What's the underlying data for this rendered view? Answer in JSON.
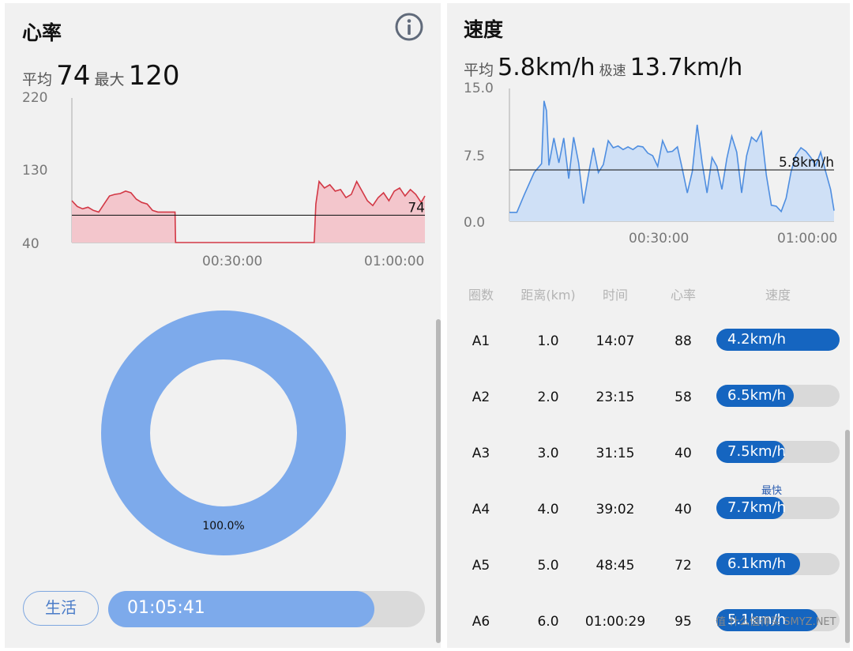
{
  "heart_rate": {
    "title": "心率",
    "avg_label": "平均",
    "avg_value": "74",
    "max_label": "最大",
    "max_value": "120",
    "info_icon": "info-icon",
    "chart_data": {
      "type": "area",
      "y_ticks": [
        "220",
        "130",
        "40"
      ],
      "x_ticks": [
        "00:30:00",
        "01:00:00"
      ],
      "ylim": [
        40,
        220
      ],
      "xlim_minutes": [
        0,
        65.7
      ],
      "average_line": 74,
      "average_label": "74",
      "color": "#d23845",
      "fill": "#f3c6cc",
      "x_minutes": [
        0,
        1,
        2,
        3,
        4,
        5,
        6,
        7,
        8,
        9,
        10,
        11,
        12,
        13,
        14,
        15,
        16,
        17,
        18,
        19,
        19.2,
        19.3,
        45,
        45.1,
        45.4,
        46,
        47,
        48,
        49,
        50,
        51,
        52,
        53,
        54,
        55,
        56,
        57,
        58,
        59,
        60,
        61,
        62,
        63,
        64,
        65,
        65.7
      ],
      "y": [
        92,
        85,
        82,
        84,
        80,
        78,
        88,
        98,
        100,
        101,
        104,
        102,
        94,
        90,
        88,
        80,
        78,
        78,
        78,
        78,
        78,
        40,
        40,
        40,
        88,
        116,
        108,
        112,
        104,
        106,
        96,
        100,
        116,
        104,
        92,
        86,
        96,
        102,
        92,
        104,
        108,
        98,
        106,
        100,
        90,
        98
      ]
    },
    "donut": {
      "percent_label": "100.0%",
      "percent": 100,
      "color": "#7daaeb"
    },
    "activity": {
      "label": "生活",
      "duration": "01:05:41",
      "progress": 0.84
    }
  },
  "speed": {
    "title": "速度",
    "avg_label": "平均",
    "avg_value": "5.8km/h",
    "max_label": "极速",
    "max_value": "13.7km/h",
    "chart_data": {
      "type": "area",
      "y_ticks": [
        "15.0",
        "7.5",
        "0.0"
      ],
      "x_ticks": [
        "00:30:00",
        "01:00:00"
      ],
      "ylim": [
        0,
        15
      ],
      "xlim_minutes": [
        0,
        65.7
      ],
      "average_line": 5.8,
      "average_label": "5.8km/h",
      "color": "#4f8ee0",
      "fill": "#cfe0f6",
      "x_minutes": [
        0,
        1.5,
        3,
        5,
        6.5,
        7,
        7.5,
        8,
        9,
        10,
        11,
        12,
        13,
        14,
        15,
        16,
        17,
        18,
        19,
        20,
        21,
        22,
        23,
        24,
        25,
        26,
        27,
        28,
        29,
        30,
        31,
        32,
        33,
        34,
        35,
        36,
        37,
        38,
        39,
        40,
        41,
        42,
        43,
        44,
        45,
        46,
        47,
        48,
        49,
        50,
        51,
        52,
        53,
        54,
        55,
        56,
        57,
        58,
        59,
        60,
        61,
        62,
        63,
        64,
        65,
        65.7
      ],
      "y": [
        1,
        1,
        3,
        5.5,
        6.5,
        13.6,
        12.5,
        6.3,
        9.4,
        6.6,
        9.4,
        4.8,
        9.5,
        6.6,
        2,
        5.3,
        8.3,
        5.5,
        6.4,
        9.1,
        8.3,
        8.5,
        8.1,
        8.4,
        8.1,
        8.5,
        8.4,
        7.7,
        7.4,
        6.2,
        9.1,
        7.8,
        7.9,
        8.4,
        5.9,
        3.2,
        5.6,
        10.9,
        6.6,
        3.2,
        7.2,
        6.2,
        3.6,
        7.1,
        9.6,
        7.8,
        3.2,
        7.4,
        9.5,
        9.0,
        10.1,
        5.2,
        1.8,
        1.7,
        1.1,
        2.6,
        5.6,
        7.5,
        8.3,
        7.9,
        7.2,
        6.3,
        7.8,
        5.6,
        3.6,
        1.2
      ]
    },
    "table": {
      "headers": [
        "圈数",
        "距离(km)",
        "时间",
        "心率",
        "速度"
      ],
      "fastest_label": "最快",
      "rows": [
        {
          "lap": "A1",
          "distance": "1.0",
          "time": "14:07",
          "hr": "88",
          "speed": "4.2km/h",
          "ratio": 1.0
        },
        {
          "lap": "A2",
          "distance": "2.0",
          "time": "23:15",
          "hr": "58",
          "speed": "6.5km/h",
          "ratio": 0.63
        },
        {
          "lap": "A3",
          "distance": "3.0",
          "time": "31:15",
          "hr": "40",
          "speed": "7.5km/h",
          "ratio": 0.56
        },
        {
          "lap": "A4",
          "distance": "4.0",
          "time": "39:02",
          "hr": "40",
          "speed": "7.7km/h",
          "ratio": 0.55
        },
        {
          "lap": "A5",
          "distance": "5.0",
          "time": "48:45",
          "hr": "72",
          "speed": "6.1km/h",
          "ratio": 0.68
        },
        {
          "lap": "A6",
          "distance": "6.0",
          "time": "01:00:29",
          "hr": "95",
          "speed": "5.1km/h",
          "ratio": 0.83
        }
      ]
    }
  },
  "watermark": "值 什么值得买 SMYZ.NET"
}
